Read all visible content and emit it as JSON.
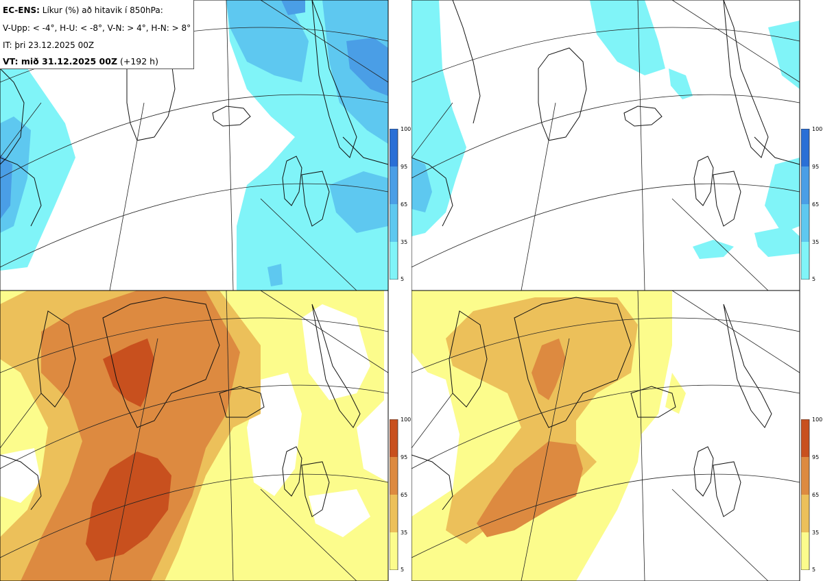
{
  "header": {
    "model_label": "EC-ENS:",
    "title_rest": " Líkur (%) að hitavik í 850hPa:",
    "criteria": "V-Upp: < -4°, H-U: < -8°, V-N: > 4°, H-N: > 8°",
    "init_time": "IT: þri 23.12.2025 00Z",
    "valid_label": "VT: mið 31.12.2025 00Z",
    "lead": " (+192 h)"
  },
  "panels": [
    {
      "id": "V-Upp",
      "scheme": "cold"
    },
    {
      "id": "H-U",
      "scheme": "cold"
    },
    {
      "id": "V-N",
      "scheme": "warm"
    },
    {
      "id": "H-N",
      "scheme": "warm"
    }
  ],
  "colorbar": {
    "ticks": [
      "100",
      "95",
      "65",
      "35",
      "5"
    ],
    "cold_colors": [
      "#2a6fd6",
      "#4a9ee6",
      "#5ec8f0",
      "#80f4f8"
    ],
    "warm_colors": [
      "#c8501e",
      "#dd8a40",
      "#ecc05a",
      "#fcfc8c"
    ]
  },
  "colors": {
    "land_outline": "#111111",
    "grid": "#222222"
  }
}
